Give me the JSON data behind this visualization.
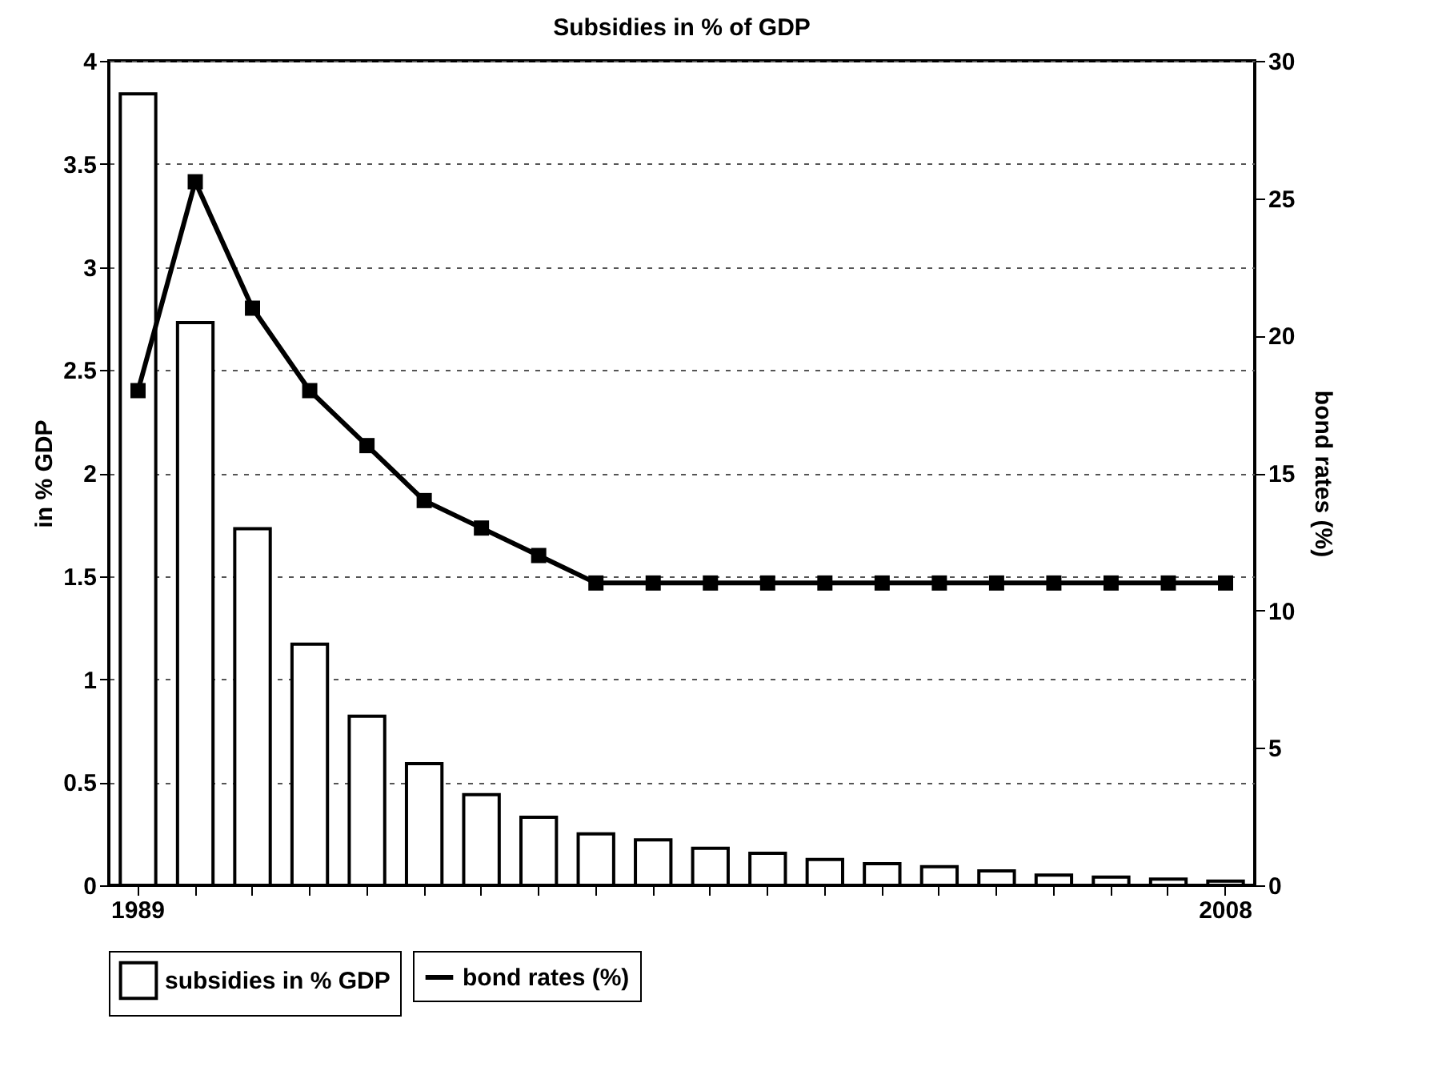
{
  "chart_data": {
    "type": "bar",
    "title": "Subsidies in % of GDP",
    "ylabel": "in % GDP",
    "y2label": "bond rates (%)",
    "categories": [
      "1989",
      null,
      null,
      null,
      null,
      null,
      null,
      null,
      null,
      null,
      null,
      null,
      null,
      null,
      null,
      null,
      null,
      null,
      null,
      "2008"
    ],
    "series": [
      {
        "name": "subsidies in % GDP",
        "color": "#ffffff",
        "values": [
          3.84,
          2.73,
          1.73,
          1.17,
          0.82,
          0.59,
          0.44,
          0.33,
          0.25,
          0.22,
          0.18,
          0.155,
          0.125,
          0.105,
          0.09,
          0.07,
          0.05,
          0.04,
          0.03,
          0.02
        ]
      },
      {
        "name": "bond rates (%)",
        "type": "line",
        "axis": "y2",
        "color": "#000000",
        "marker": "square",
        "line_style": "solid",
        "values": [
          18,
          25.6,
          21,
          18,
          16,
          14,
          13,
          12,
          11,
          11,
          11,
          11,
          11,
          11,
          11,
          11,
          11,
          11,
          11,
          11
        ]
      }
    ],
    "ylim": [
      0,
      4
    ],
    "yticks": [
      0,
      0.5,
      1,
      1.5,
      2,
      2.5,
      3,
      3.5,
      4
    ],
    "y2lim": [
      0,
      30
    ],
    "y2ticks": [
      0,
      5,
      10,
      15,
      20,
      25,
      30
    ],
    "grid": "y",
    "legend": "bottom"
  }
}
